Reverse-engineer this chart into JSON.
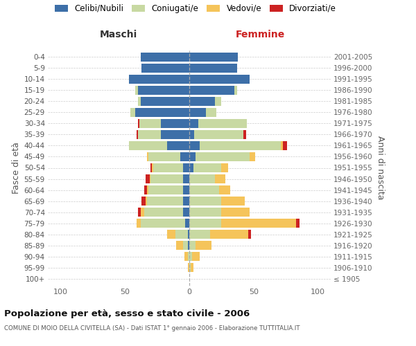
{
  "age_groups": [
    "100+",
    "95-99",
    "90-94",
    "85-89",
    "80-84",
    "75-79",
    "70-74",
    "65-69",
    "60-64",
    "55-59",
    "50-54",
    "45-49",
    "40-44",
    "35-39",
    "30-34",
    "25-29",
    "20-24",
    "15-19",
    "10-14",
    "5-9",
    "0-4"
  ],
  "birth_years": [
    "≤ 1905",
    "1906-1910",
    "1911-1915",
    "1916-1920",
    "1921-1925",
    "1926-1930",
    "1931-1935",
    "1936-1940",
    "1941-1945",
    "1946-1950",
    "1951-1955",
    "1956-1960",
    "1961-1965",
    "1966-1970",
    "1971-1975",
    "1976-1980",
    "1981-1985",
    "1986-1990",
    "1991-1995",
    "1996-2000",
    "2001-2005"
  ],
  "colors": {
    "celibi": "#3d6fa8",
    "coniugati": "#c8d9a2",
    "vedovi": "#f5c45a",
    "divorziati": "#cc2222"
  },
  "males_celibi": [
    0,
    0,
    0,
    1,
    1,
    3,
    5,
    5,
    5,
    5,
    5,
    7,
    17,
    22,
    22,
    42,
    38,
    40,
    47,
    37,
    38
  ],
  "males_coniugati": [
    0,
    0,
    1,
    4,
    10,
    35,
    30,
    28,
    27,
    25,
    23,
    25,
    30,
    18,
    17,
    4,
    2,
    2,
    0,
    0,
    0
  ],
  "males_vedovi": [
    0,
    1,
    3,
    5,
    6,
    3,
    3,
    1,
    1,
    1,
    1,
    1,
    0,
    0,
    0,
    0,
    0,
    0,
    0,
    0,
    0
  ],
  "males_divorziati": [
    0,
    0,
    0,
    0,
    0,
    0,
    2,
    3,
    2,
    3,
    1,
    0,
    0,
    1,
    1,
    0,
    0,
    0,
    0,
    0,
    0
  ],
  "females_nubili": [
    0,
    0,
    0,
    0,
    0,
    0,
    0,
    0,
    0,
    0,
    3,
    5,
    8,
    4,
    7,
    13,
    20,
    35,
    47,
    37,
    38
  ],
  "females_coniugate": [
    0,
    1,
    2,
    5,
    16,
    25,
    25,
    25,
    23,
    20,
    22,
    42,
    63,
    38,
    38,
    8,
    5,
    2,
    0,
    0,
    0
  ],
  "females_vedove": [
    0,
    2,
    6,
    12,
    30,
    58,
    22,
    18,
    9,
    8,
    5,
    4,
    2,
    0,
    0,
    0,
    0,
    0,
    0,
    0,
    0
  ],
  "females_divorziate": [
    0,
    0,
    0,
    0,
    2,
    3,
    0,
    0,
    0,
    0,
    0,
    0,
    3,
    2,
    0,
    0,
    0,
    0,
    0,
    0,
    0
  ],
  "xlim": 110,
  "xticks": [
    -100,
    -50,
    0,
    50,
    100
  ],
  "title": "Popolazione per età, sesso e stato civile - 2006",
  "subtitle": "COMUNE DI MOIO DELLA CIVITELLA (SA) - Dati ISTAT 1° gennaio 2006 - Elaborazione TUTTITALIA.IT",
  "ylabel_left": "Fasce di età",
  "ylabel_right": "Anni di nascita",
  "xlabel_left": "Maschi",
  "xlabel_right": "Femmine",
  "legend_labels": [
    "Celibi/Nubili",
    "Coniugati/e",
    "Vedovi/e",
    "Divorziati/e"
  ],
  "bg_color": "#ffffff",
  "grid_color": "#cccccc"
}
